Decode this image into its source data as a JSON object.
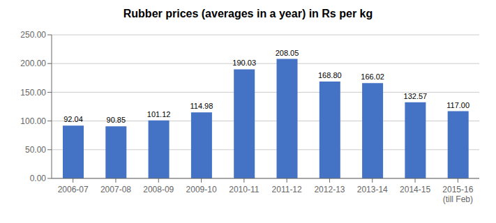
{
  "chart_data": {
    "type": "bar",
    "title": "Rubber prices (averages in a year) in Rs per kg",
    "categories": [
      "2006-07",
      "2007-08",
      "2008-09",
      "2009-10",
      "2010-11",
      "2011-12",
      "2012-13",
      "2013-14",
      "2014-15",
      "2015-16\n(till Feb)"
    ],
    "values": [
      92.04,
      90.85,
      101.12,
      114.98,
      190.03,
      208.05,
      168.8,
      166.02,
      132.57,
      117.0
    ],
    "value_labels": [
      "92.04",
      "90.85",
      "101.12",
      "114.98",
      "190.03",
      "208.05",
      "168.80",
      "166.02",
      "132.57",
      "117.00"
    ],
    "data_labels": true,
    "color": "#4472C4",
    "ylim": [
      0,
      250
    ],
    "yticks": [
      {
        "value": 0,
        "label": "0.00"
      },
      {
        "value": 50,
        "label": "50.00"
      },
      {
        "value": 100,
        "label": "100.00"
      },
      {
        "value": 150,
        "label": "150.00"
      },
      {
        "value": 200,
        "label": "200.00"
      },
      {
        "value": 250,
        "label": "250.00"
      }
    ],
    "grid": true
  }
}
